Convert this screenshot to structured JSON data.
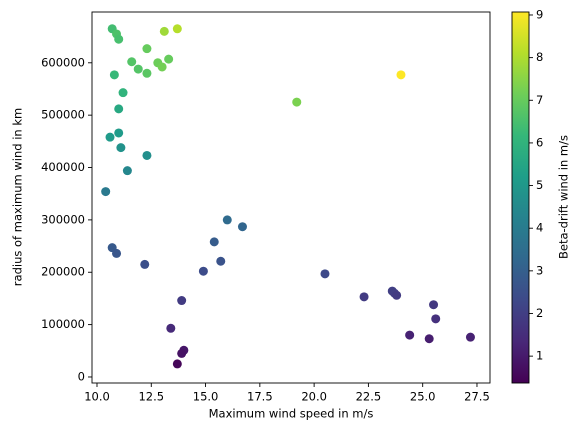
{
  "chart_data": {
    "type": "scatter",
    "xlabel": "Maximum wind speed in m/s",
    "ylabel": "radius of maximum wind in km",
    "colorbar_label": "Beta-drift wind in m/s",
    "colormap": "viridis",
    "x": [
      10.7,
      10.9,
      11.0,
      13.1,
      13.7,
      12.3,
      10.8,
      11.6,
      11.9,
      12.3,
      12.8,
      13.0,
      13.3,
      24.0,
      19.2,
      11.2,
      11.0,
      10.6,
      11.0,
      11.1,
      12.3,
      11.4,
      10.4,
      16.0,
      16.7,
      15.4,
      15.7,
      10.7,
      10.9,
      12.2,
      14.9,
      20.5,
      13.9,
      22.3,
      23.6,
      23.7,
      23.8,
      25.5,
      25.6,
      13.4,
      24.4,
      25.3,
      27.2,
      14.0,
      13.9,
      13.7
    ],
    "y": [
      665000,
      655000,
      645000,
      660000,
      665000,
      627000,
      577000,
      602000,
      588000,
      580000,
      600000,
      592000,
      607000,
      577000,
      525000,
      543000,
      512000,
      458000,
      466000,
      438000,
      423000,
      394000,
      354000,
      300000,
      287000,
      258000,
      221000,
      247000,
      236000,
      215000,
      202000,
      197000,
      146000,
      153000,
      164000,
      160000,
      156000,
      138000,
      111000,
      93000,
      80000,
      73000,
      76000,
      51000,
      45000,
      25000
    ],
    "c": [
      6.4,
      6.6,
      6.5,
      7.8,
      8.1,
      7.0,
      6.2,
      6.7,
      6.7,
      6.8,
      7.1,
      7.2,
      7.0,
      9.1,
      7.3,
      6.0,
      5.6,
      5.1,
      5.1,
      4.8,
      4.7,
      4.4,
      3.9,
      3.4,
      3.2,
      2.9,
      2.6,
      2.8,
      2.7,
      2.5,
      2.4,
      2.3,
      1.9,
      1.9,
      2.0,
      2.0,
      1.9,
      1.8,
      1.6,
      1.4,
      1.2,
      1.1,
      1.2,
      0.9,
      0.8,
      0.5
    ],
    "xlim": [
      9.77,
      28.1
    ],
    "ylim": [
      -11500,
      697000
    ],
    "clim": [
      0.37,
      9.07
    ],
    "xticks": [
      {
        "value": 10,
        "label": "10.0"
      },
      12.5,
      {
        "value": 15,
        "label": "15.0"
      },
      17.5,
      {
        "value": 20,
        "label": "20.0"
      },
      22.5,
      {
        "value": 25,
        "label": "25.0"
      },
      27.5
    ],
    "yticks": [
      0,
      100000,
      200000,
      300000,
      400000,
      500000,
      600000
    ],
    "cticks": [
      1,
      2,
      3,
      4,
      5,
      6,
      7,
      8,
      9
    ]
  }
}
